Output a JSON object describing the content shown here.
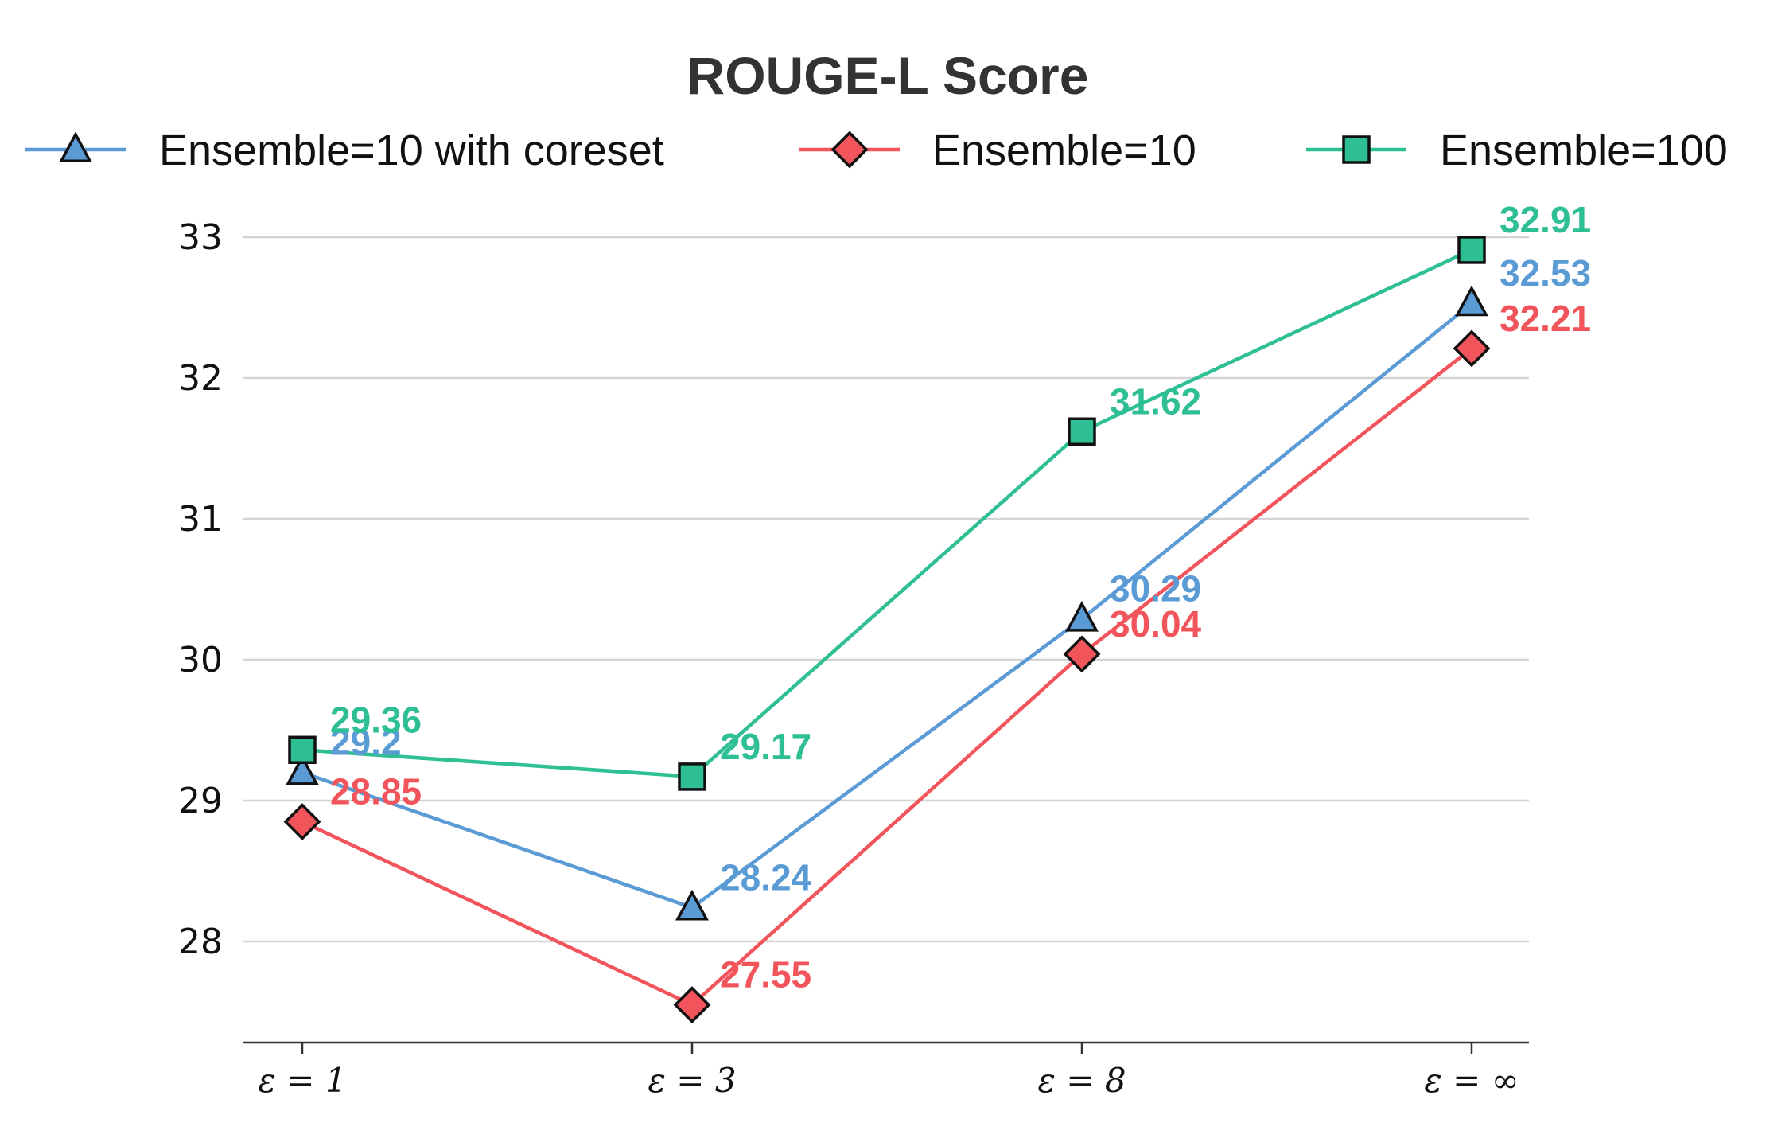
{
  "chart_data": {
    "type": "line",
    "title": "ROUGE-L Score",
    "xlabel": "",
    "ylabel": "",
    "categories": [
      "ε = 1",
      "ε = 3",
      "ε = 8",
      "ε = ∞"
    ],
    "yticks": [
      28,
      29,
      30,
      31,
      32,
      33
    ],
    "ylim": [
      27.28,
      33.2
    ],
    "grid": "horizontal",
    "legend_position": "top",
    "series": [
      {
        "name": "Ensemble=10 with coreset",
        "values": [
          29.2,
          28.24,
          30.29,
          32.53
        ],
        "labels": [
          "29.2",
          "28.24",
          "30.29",
          "32.53"
        ],
        "color": "#5b9bd5",
        "marker": "triangle"
      },
      {
        "name": "Ensemble=10",
        "values": [
          28.85,
          27.55,
          30.04,
          32.21
        ],
        "labels": [
          "28.85",
          "27.55",
          "30.04",
          "32.21"
        ],
        "color": "#f2545b",
        "marker": "diamond"
      },
      {
        "name": "Ensemble=100",
        "values": [
          29.36,
          29.17,
          31.62,
          32.91
        ],
        "labels": [
          "29.36",
          "29.17",
          "31.62",
          "32.91"
        ],
        "color": "#2fbf95",
        "marker": "square"
      }
    ]
  }
}
